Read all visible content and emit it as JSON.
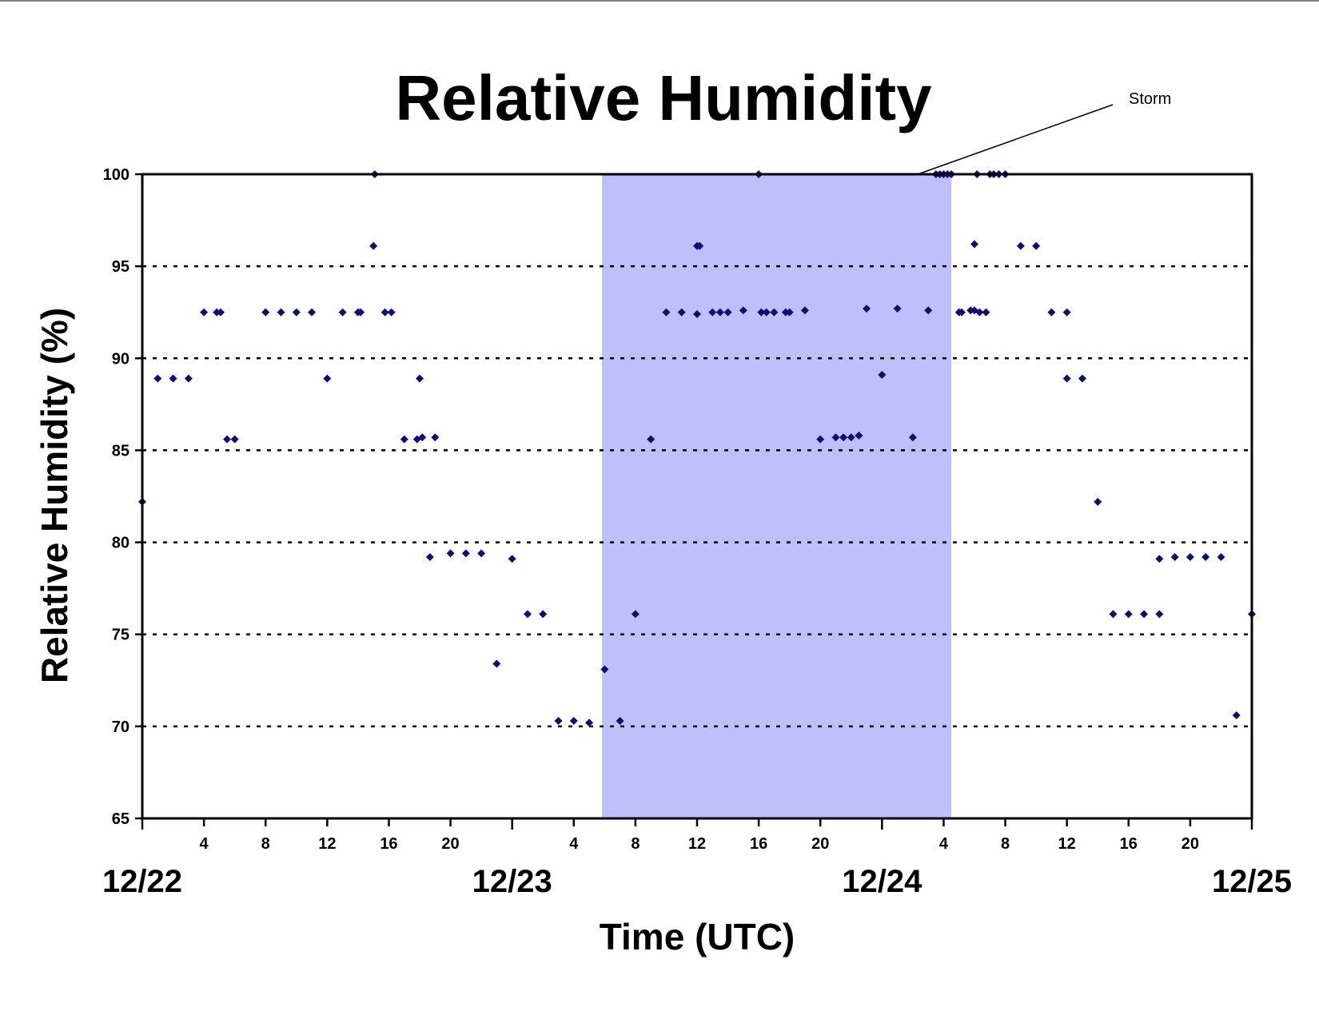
{
  "chart_data": {
    "type": "scatter",
    "title": "Relative Humidity",
    "xlabel": "Time (UTC)",
    "ylabel": "Relative Humidity (%)",
    "ylim": [
      65,
      100
    ],
    "yticks": [
      65,
      70,
      75,
      80,
      85,
      90,
      95,
      100
    ],
    "xlim": [
      "12/22 00:00",
      "12/25 00:00"
    ],
    "xticks": [
      {
        "time": "12/22 04:00",
        "label": "4"
      },
      {
        "time": "12/22 08:00",
        "label": "8"
      },
      {
        "time": "12/22 12:00",
        "label": "12"
      },
      {
        "time": "12/22 16:00",
        "label": "16"
      },
      {
        "time": "12/22 20:00",
        "label": "20"
      },
      {
        "time": "12/23 04:00",
        "label": "4"
      },
      {
        "time": "12/23 08:00",
        "label": "8"
      },
      {
        "time": "12/23 12:00",
        "label": "12"
      },
      {
        "time": "12/23 16:00",
        "label": "16"
      },
      {
        "time": "12/23 20:00",
        "label": "20"
      },
      {
        "time": "12/24 04:00",
        "label": "4"
      },
      {
        "time": "12/24 08:00",
        "label": "8"
      },
      {
        "time": "12/24 12:00",
        "label": "12"
      },
      {
        "time": "12/24 16:00",
        "label": "16"
      },
      {
        "time": "12/24 20:00",
        "label": "20"
      }
    ],
    "date_labels": [
      {
        "time": "12/22 00:00",
        "label": "12/22"
      },
      {
        "time": "12/23 00:00",
        "label": "12/23"
      },
      {
        "time": "12/24 00:00",
        "label": "12/24"
      },
      {
        "time": "12/25 00:00",
        "label": "12/25"
      }
    ],
    "grid": "horizontal dotted",
    "storm_period": {
      "start": "12/23 05:50",
      "end": "12/24 04:30",
      "color": "#bfbffb"
    },
    "annotation": {
      "text": "Storm",
      "points_to": "storm_period"
    },
    "marker_color": "#0d0d7a",
    "points": [
      [
        "12/22 00:00",
        82.2
      ],
      [
        "12/22 01:00",
        88.9
      ],
      [
        "12/22 02:00",
        88.9
      ],
      [
        "12/22 03:00",
        88.9
      ],
      [
        "12/22 04:00",
        92.5
      ],
      [
        "12/22 04:50",
        92.5
      ],
      [
        "12/22 05:05",
        92.5
      ],
      [
        "12/22 05:30",
        85.6
      ],
      [
        "12/22 06:00",
        85.6
      ],
      [
        "12/22 08:00",
        92.5
      ],
      [
        "12/22 09:00",
        92.5
      ],
      [
        "12/22 10:00",
        92.5
      ],
      [
        "12/22 11:00",
        92.5
      ],
      [
        "12/22 12:00",
        88.9
      ],
      [
        "12/22 13:00",
        92.5
      ],
      [
        "12/22 14:00",
        92.5
      ],
      [
        "12/22 14:10",
        92.5
      ],
      [
        "12/22 15:00",
        96.1
      ],
      [
        "12/22 15:05",
        100.0
      ],
      [
        "12/22 15:45",
        92.5
      ],
      [
        "12/22 16:10",
        92.5
      ],
      [
        "12/22 17:00",
        85.6
      ],
      [
        "12/22 17:50",
        85.6
      ],
      [
        "12/22 18:00",
        88.9
      ],
      [
        "12/22 18:10",
        85.7
      ],
      [
        "12/22 18:40",
        79.2
      ],
      [
        "12/22 19:00",
        85.7
      ],
      [
        "12/22 20:00",
        79.4
      ],
      [
        "12/22 21:00",
        79.4
      ],
      [
        "12/22 22:00",
        79.4
      ],
      [
        "12/22 23:00",
        73.4
      ],
      [
        "12/23 00:00",
        79.1
      ],
      [
        "12/23 01:00",
        76.1
      ],
      [
        "12/23 02:00",
        76.1
      ],
      [
        "12/23 03:00",
        70.3
      ],
      [
        "12/23 04:00",
        70.3
      ],
      [
        "12/23 05:00",
        70.2
      ],
      [
        "12/23 06:00",
        73.1
      ],
      [
        "12/23 07:00",
        70.3
      ],
      [
        "12/23 08:00",
        76.1
      ],
      [
        "12/23 09:00",
        85.6
      ],
      [
        "12/23 10:00",
        92.5
      ],
      [
        "12/23 11:00",
        92.5
      ],
      [
        "12/23 12:00",
        92.4
      ],
      [
        "12/23 12:00",
        96.1
      ],
      [
        "12/23 12:10",
        96.1
      ],
      [
        "12/23 13:00",
        92.5
      ],
      [
        "12/23 13:30",
        92.5
      ],
      [
        "12/23 14:00",
        92.5
      ],
      [
        "12/23 15:00",
        92.6
      ],
      [
        "12/23 16:00",
        100.0
      ],
      [
        "12/23 16:10",
        92.5
      ],
      [
        "12/23 16:30",
        92.5
      ],
      [
        "12/23 17:00",
        92.5
      ],
      [
        "12/23 17:45",
        92.5
      ],
      [
        "12/23 18:00",
        92.5
      ],
      [
        "12/23 19:00",
        92.6
      ],
      [
        "12/23 20:00",
        85.6
      ],
      [
        "12/23 21:00",
        85.7
      ],
      [
        "12/23 21:30",
        85.7
      ],
      [
        "12/23 22:00",
        85.7
      ],
      [
        "12/23 22:30",
        85.8
      ],
      [
        "12/23 23:00",
        92.7
      ],
      [
        "12/24 00:00",
        89.1
      ],
      [
        "12/24 01:00",
        92.7
      ],
      [
        "12/24 02:00",
        85.7
      ],
      [
        "12/24 03:00",
        92.6
      ],
      [
        "12/24 03:30",
        100.0
      ],
      [
        "12/24 03:45",
        100.0
      ],
      [
        "12/24 04:00",
        100.0
      ],
      [
        "12/24 04:15",
        100.0
      ],
      [
        "12/24 04:30",
        100.0
      ],
      [
        "12/24 05:00",
        92.5
      ],
      [
        "12/24 05:10",
        92.5
      ],
      [
        "12/24 05:45",
        92.6
      ],
      [
        "12/24 06:00",
        96.2
      ],
      [
        "12/24 06:00",
        92.6
      ],
      [
        "12/24 06:10",
        100.0
      ],
      [
        "12/24 06:20",
        92.5
      ],
      [
        "12/24 06:45",
        92.5
      ],
      [
        "12/24 07:00",
        100.0
      ],
      [
        "12/24 07:15",
        100.0
      ],
      [
        "12/24 07:35",
        100.0
      ],
      [
        "12/24 08:00",
        100.0
      ],
      [
        "12/24 09:00",
        96.1
      ],
      [
        "12/24 10:00",
        96.1
      ],
      [
        "12/24 11:00",
        92.5
      ],
      [
        "12/24 12:00",
        92.5
      ],
      [
        "12/24 12:00",
        88.9
      ],
      [
        "12/24 13:00",
        88.9
      ],
      [
        "12/24 14:00",
        82.2
      ],
      [
        "12/24 15:00",
        76.1
      ],
      [
        "12/24 16:00",
        76.1
      ],
      [
        "12/24 17:00",
        76.1
      ],
      [
        "12/24 18:00",
        76.1
      ],
      [
        "12/24 18:00",
        79.1
      ],
      [
        "12/24 19:00",
        79.2
      ],
      [
        "12/24 20:00",
        79.2
      ],
      [
        "12/24 21:00",
        79.2
      ],
      [
        "12/24 22:00",
        79.2
      ],
      [
        "12/24 23:00",
        70.6
      ],
      [
        "12/25 00:00",
        76.1
      ]
    ]
  }
}
